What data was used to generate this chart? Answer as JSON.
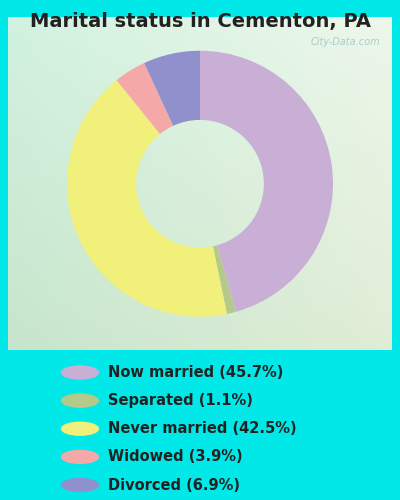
{
  "title": "Marital status in Cementon, PA",
  "slices": [
    {
      "label": "Now married (45.7%)",
      "value": 45.7,
      "color": "#c9aed6"
    },
    {
      "label": "Separated (1.1%)",
      "value": 1.1,
      "color": "#b5c98a"
    },
    {
      "label": "Never married (42.5%)",
      "value": 42.5,
      "color": "#f0f07a"
    },
    {
      "label": "Widowed (3.9%)",
      "value": 3.9,
      "color": "#f4a8a8"
    },
    {
      "label": "Divorced (6.9%)",
      "value": 6.9,
      "color": "#9090cc"
    }
  ],
  "background_color": "#00e8e8",
  "chart_bg_tl": [
    0.82,
    0.95,
    0.88
  ],
  "chart_bg_tr": [
    0.92,
    0.95,
    0.88
  ],
  "chart_bg_bl": [
    0.8,
    0.92,
    0.82
  ],
  "chart_bg_br": [
    0.9,
    0.95,
    0.8
  ],
  "watermark": "City-Data.com",
  "title_fontsize": 14,
  "legend_fontsize": 10.5,
  "donut_width": 0.52,
  "start_angle": 90,
  "pie_order": [
    0,
    1,
    2,
    3,
    4
  ]
}
